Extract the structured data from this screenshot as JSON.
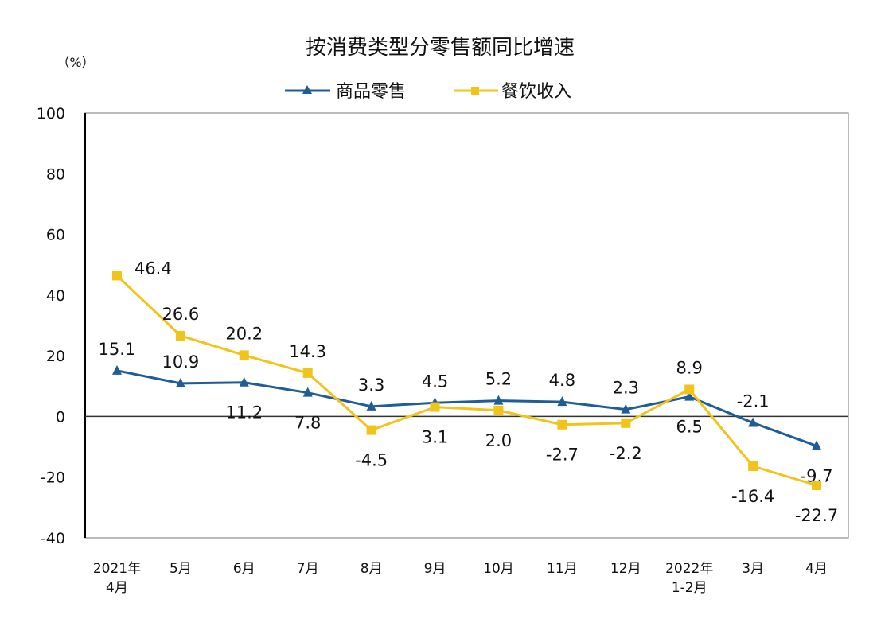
{
  "chart_data": {
    "type": "line",
    "title": "按消费类型分零售额同比增速",
    "ylabel": "（%）",
    "xlabel": "",
    "ylim": [
      -40,
      100
    ],
    "yticks": [
      "100",
      "80",
      "60",
      "40",
      "20",
      "0",
      "-20",
      "-40"
    ],
    "ytick_values": [
      100,
      80,
      60,
      40,
      20,
      0,
      -20,
      -40
    ],
    "grid": false,
    "legend_position": "top-center",
    "categories": [
      "2021年\n4月",
      "5月",
      "6月",
      "7月",
      "8月",
      "9月",
      "10月",
      "11月",
      "12月",
      "2022年\n1-2月",
      "3月",
      "4月"
    ],
    "series": [
      {
        "name": "商品零售",
        "color": "#1f5d99",
        "marker": "triangle",
        "values": [
          15.1,
          10.9,
          11.2,
          7.8,
          3.3,
          4.5,
          5.2,
          4.8,
          2.3,
          6.5,
          -2.1,
          -9.7
        ],
        "labels": [
          "15.1",
          "10.9",
          "11.2",
          "7.8",
          "3.3",
          "4.5",
          "5.2",
          "4.8",
          "2.3",
          "6.5",
          "-2.1",
          "-9.7"
        ],
        "label_positions": [
          "above",
          "above",
          "below",
          "below",
          "above",
          "above",
          "above",
          "above",
          "above",
          "below",
          "above",
          "below"
        ]
      },
      {
        "name": "餐饮收入",
        "color": "#f2c419",
        "marker": "square",
        "values": [
          46.4,
          26.6,
          20.2,
          14.3,
          -4.5,
          3.1,
          2.0,
          -2.7,
          -2.2,
          8.9,
          -16.4,
          -22.7
        ],
        "labels": [
          "46.4",
          "26.6",
          "20.2",
          "14.3",
          "-4.5",
          "3.1",
          "2.0",
          "-2.7",
          "-2.2",
          "8.9",
          "-16.4",
          "-22.7"
        ],
        "label_positions": [
          "right",
          "above",
          "above",
          "above",
          "below",
          "below",
          "below",
          "below",
          "below",
          "above",
          "below",
          "below"
        ]
      }
    ]
  }
}
